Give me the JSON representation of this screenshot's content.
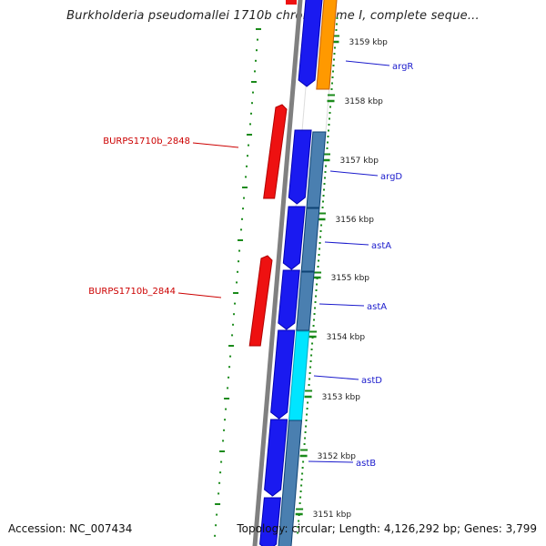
{
  "title": "Burkholderia pseudomallei 1710b chromosome I, complete seque...",
  "accession": "Accession: NC_007434",
  "topology": "Topology: circular; Length: 4,126,292 bp; Genes: 3,799",
  "colors": {
    "blue_gene": "#1a1af0",
    "steel_gene": "#4a7fb0",
    "orange_gene": "#ff9900",
    "cyan_gene": "#00e5ff",
    "red_gene": "#ee1111",
    "label_red": "#cc0000",
    "label_blue": "#1a1acc",
    "tick_green": "#1a8a1a",
    "backbone": "#808080"
  },
  "kbp_ticks": [
    {
      "label": "3159 kbp"
    },
    {
      "label": "3158 kbp"
    },
    {
      "label": "3157 kbp"
    },
    {
      "label": "3156 kbp"
    },
    {
      "label": "3155 kbp"
    },
    {
      "label": "3154 kbp"
    },
    {
      "label": "3153 kbp"
    },
    {
      "label": "3152 kbp"
    },
    {
      "label": "3151 kbp"
    }
  ],
  "gene_labels_right": [
    {
      "label": "argR"
    },
    {
      "label": "argD"
    },
    {
      "label": "astA"
    },
    {
      "label": "astA"
    },
    {
      "label": "astD"
    },
    {
      "label": "astB"
    }
  ],
  "gene_labels_left": [
    {
      "label": "BURPS1710b_2848"
    },
    {
      "label": "BURPS1710b_2844"
    }
  ]
}
